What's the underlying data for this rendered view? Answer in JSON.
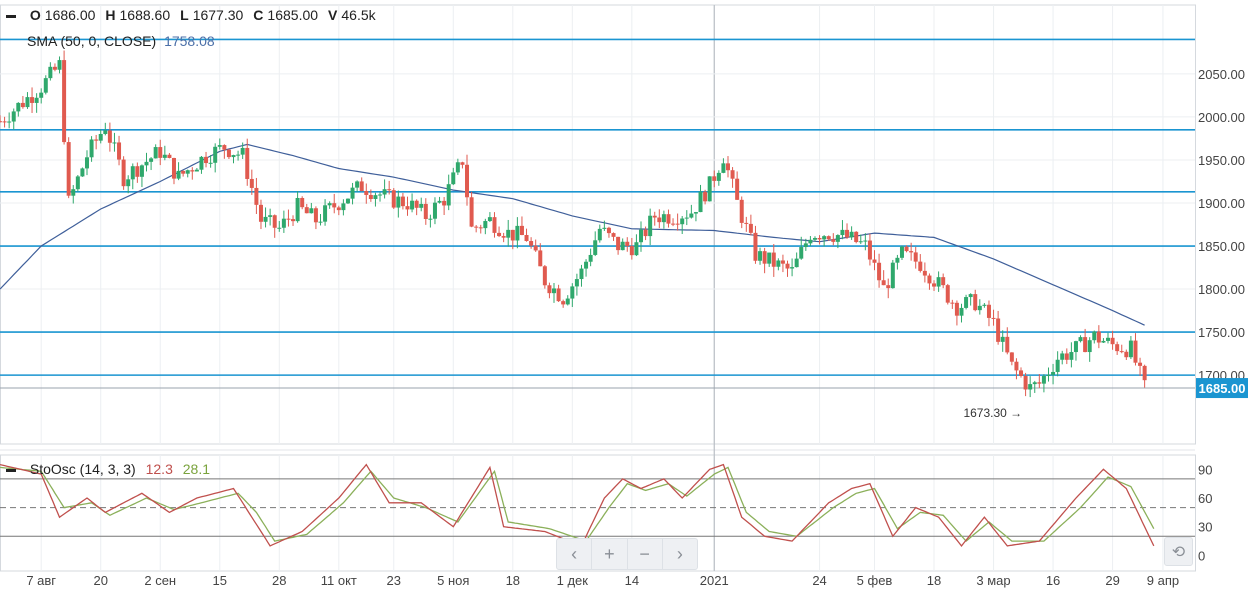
{
  "header": {
    "ohlc": [
      {
        "key": "O",
        "value": "1686.00"
      },
      {
        "key": "H",
        "value": "1688.60"
      },
      {
        "key": "L",
        "value": "1677.30"
      },
      {
        "key": "C",
        "value": "1685.00"
      },
      {
        "key": "V",
        "value": "46.5k"
      }
    ],
    "sma_label": "SMA (50, 0, CLOSE)",
    "sma_value": "1758.08"
  },
  "stochastic": {
    "label": "StoOsc (14, 3, 3)",
    "k_value": "12.3",
    "d_value": "28.1",
    "ticks": [
      "90",
      "60",
      "30",
      "0"
    ]
  },
  "price_tag": "1685.00",
  "min_marker": "1673.30 →",
  "nav": {
    "left": "‹",
    "zoom_in": "+",
    "zoom_out": "−",
    "right": "›",
    "reset": "⟲"
  },
  "colors": {
    "up": "#2fa86c",
    "down": "#e05a4f",
    "sma": "#3f5f9a",
    "level": "#1a95d1",
    "k": "#c0504d",
    "d": "#8bb05a"
  },
  "chart_data": {
    "type": "candlestick",
    "y_ticks": [
      2050,
      2000,
      1950,
      1900,
      1850,
      1800,
      1750,
      1700
    ],
    "y_tick_labels": [
      "2050.00",
      "2000.00",
      "1950.00",
      "1900.00",
      "1850.00",
      "1800.00",
      "1750.00",
      "1700.00"
    ],
    "ylim": [
      1620,
      2130
    ],
    "x_tick_labels": [
      "7 авг",
      "20",
      "2 сен",
      "15",
      "28",
      "11 окт",
      "23",
      "5 ноя",
      "18",
      "1 дек",
      "14",
      "2021",
      "24",
      "5 фев",
      "18",
      "3 мар",
      "16",
      "29",
      "9 апр"
    ],
    "x_tick_days": [
      0,
      13,
      26,
      39,
      52,
      65,
      77,
      90,
      103,
      116,
      129,
      147,
      170,
      182,
      195,
      208,
      221,
      234,
      245
    ],
    "xlim": [
      -9,
      252
    ],
    "horizontal_levels": [
      2090,
      1985,
      1913,
      1850,
      1750,
      1700
    ],
    "last_price": 1685.0,
    "min_annotation": 1673.3,
    "sma_anchor_points": [
      [
        -9,
        1800
      ],
      [
        0,
        1850
      ],
      [
        13,
        1893
      ],
      [
        26,
        1925
      ],
      [
        39,
        1960
      ],
      [
        45,
        1968
      ],
      [
        55,
        1955
      ],
      [
        65,
        1940
      ],
      [
        77,
        1930
      ],
      [
        90,
        1915
      ],
      [
        103,
        1905
      ],
      [
        116,
        1885
      ],
      [
        129,
        1870
      ],
      [
        147,
        1868
      ],
      [
        160,
        1860
      ],
      [
        170,
        1855
      ],
      [
        182,
        1865
      ],
      [
        195,
        1860
      ],
      [
        208,
        1835
      ],
      [
        221,
        1805
      ],
      [
        234,
        1775
      ],
      [
        241,
        1758
      ]
    ],
    "stoch_anchor_k": [
      [
        -9,
        95
      ],
      [
        0,
        85
      ],
      [
        4,
        40
      ],
      [
        10,
        60
      ],
      [
        14,
        45
      ],
      [
        22,
        65
      ],
      [
        28,
        45
      ],
      [
        34,
        60
      ],
      [
        42,
        70
      ],
      [
        46,
        40
      ],
      [
        50,
        10
      ],
      [
        57,
        25
      ],
      [
        65,
        60
      ],
      [
        71,
        95
      ],
      [
        76,
        55
      ],
      [
        83,
        55
      ],
      [
        90,
        30
      ],
      [
        98,
        92
      ],
      [
        101,
        30
      ],
      [
        110,
        25
      ],
      [
        118,
        10
      ],
      [
        123,
        60
      ],
      [
        127,
        80
      ],
      [
        131,
        70
      ],
      [
        136,
        80
      ],
      [
        140,
        60
      ],
      [
        146,
        90
      ],
      [
        149,
        95
      ],
      [
        153,
        40
      ],
      [
        158,
        20
      ],
      [
        164,
        15
      ],
      [
        172,
        55
      ],
      [
        177,
        70
      ],
      [
        181,
        75
      ],
      [
        186,
        20
      ],
      [
        191,
        50
      ],
      [
        196,
        40
      ],
      [
        201,
        10
      ],
      [
        206,
        40
      ],
      [
        211,
        10
      ],
      [
        218,
        15
      ],
      [
        226,
        60
      ],
      [
        232,
        90
      ],
      [
        237,
        70
      ],
      [
        243,
        10
      ]
    ],
    "stoch_anchor_d": [
      [
        -9,
        92
      ],
      [
        0,
        88
      ],
      [
        5,
        50
      ],
      [
        11,
        55
      ],
      [
        15,
        42
      ],
      [
        23,
        60
      ],
      [
        29,
        48
      ],
      [
        35,
        55
      ],
      [
        43,
        65
      ],
      [
        47,
        45
      ],
      [
        51,
        15
      ],
      [
        58,
        22
      ],
      [
        66,
        55
      ],
      [
        72,
        88
      ],
      [
        77,
        60
      ],
      [
        84,
        50
      ],
      [
        91,
        35
      ],
      [
        99,
        88
      ],
      [
        102,
        35
      ],
      [
        111,
        28
      ],
      [
        119,
        15
      ],
      [
        124,
        50
      ],
      [
        128,
        75
      ],
      [
        132,
        68
      ],
      [
        137,
        75
      ],
      [
        141,
        62
      ],
      [
        147,
        85
      ],
      [
        150,
        92
      ],
      [
        154,
        45
      ],
      [
        159,
        25
      ],
      [
        165,
        20
      ],
      [
        173,
        50
      ],
      [
        178,
        65
      ],
      [
        182,
        70
      ],
      [
        187,
        28
      ],
      [
        192,
        45
      ],
      [
        197,
        42
      ],
      [
        202,
        15
      ],
      [
        207,
        35
      ],
      [
        212,
        15
      ],
      [
        219,
        15
      ],
      [
        227,
        50
      ],
      [
        233,
        82
      ],
      [
        238,
        72
      ],
      [
        243,
        28
      ]
    ],
    "stoch_levels": [
      80,
      50,
      20
    ],
    "stoch_ylim": [
      -10,
      105
    ],
    "price_anchor_points": [
      [
        -9,
        1995
      ],
      [
        0,
        2035
      ],
      [
        4,
        2060
      ],
      [
        6,
        1900
      ],
      [
        10,
        1955
      ],
      [
        14,
        1990
      ],
      [
        18,
        1930
      ],
      [
        22,
        1945
      ],
      [
        26,
        1960
      ],
      [
        30,
        1930
      ],
      [
        36,
        1955
      ],
      [
        40,
        1965
      ],
      [
        44,
        1955
      ],
      [
        48,
        1880
      ],
      [
        52,
        1870
      ],
      [
        56,
        1895
      ],
      [
        60,
        1880
      ],
      [
        66,
        1905
      ],
      [
        70,
        1920
      ],
      [
        76,
        1905
      ],
      [
        80,
        1900
      ],
      [
        84,
        1885
      ],
      [
        88,
        1905
      ],
      [
        92,
        1950
      ],
      [
        94,
        1870
      ],
      [
        98,
        1880
      ],
      [
        102,
        1865
      ],
      [
        106,
        1860
      ],
      [
        110,
        1810
      ],
      [
        114,
        1790
      ],
      [
        118,
        1820
      ],
      [
        122,
        1870
      ],
      [
        126,
        1850
      ],
      [
        130,
        1850
      ],
      [
        134,
        1885
      ],
      [
        138,
        1885
      ],
      [
        142,
        1890
      ],
      [
        146,
        1920
      ],
      [
        149,
        1955
      ],
      [
        152,
        1900
      ],
      [
        156,
        1840
      ],
      [
        160,
        1830
      ],
      [
        164,
        1820
      ],
      [
        168,
        1865
      ],
      [
        172,
        1865
      ],
      [
        176,
        1860
      ],
      [
        180,
        1850
      ],
      [
        184,
        1800
      ],
      [
        188,
        1840
      ],
      [
        192,
        1830
      ],
      [
        196,
        1805
      ],
      [
        200,
        1780
      ],
      [
        204,
        1785
      ],
      [
        208,
        1760
      ],
      [
        212,
        1710
      ],
      [
        216,
        1685
      ],
      [
        218,
        1690
      ],
      [
        222,
        1720
      ],
      [
        226,
        1730
      ],
      [
        230,
        1745
      ],
      [
        234,
        1735
      ],
      [
        238,
        1730
      ],
      [
        241,
        1685
      ]
    ]
  }
}
